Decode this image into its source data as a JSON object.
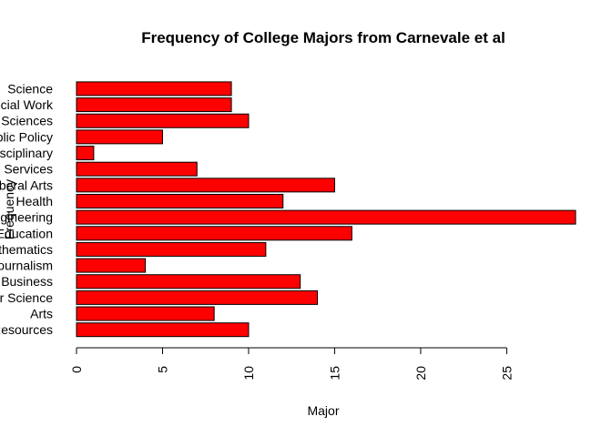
{
  "chart_data": {
    "type": "bar",
    "orientation": "horizontal",
    "title": "Frequency of College Majors from Carnevale et al",
    "xlabel": "Major",
    "ylabel": "Frequency",
    "xlim": [
      0,
      29
    ],
    "x_ticks": [
      0,
      5,
      10,
      15,
      20,
      25
    ],
    "categories": [
      "Natural Resources",
      "Arts",
      "Computer Science",
      "Business",
      "Journalism",
      "Mathematics",
      "Education",
      "Engineering",
      "Health",
      "Liberal Arts",
      "Services",
      "Interdisciplinary",
      "Public Policy",
      "Social Sciences",
      "Social Work",
      "Science"
    ],
    "values": [
      10,
      8,
      14,
      13,
      4,
      11,
      16,
      29,
      12,
      15,
      7,
      1,
      5,
      10,
      9,
      9
    ],
    "bar_color": "#ff0000",
    "bar_border": "#000000",
    "grid": false,
    "legend": "none"
  }
}
